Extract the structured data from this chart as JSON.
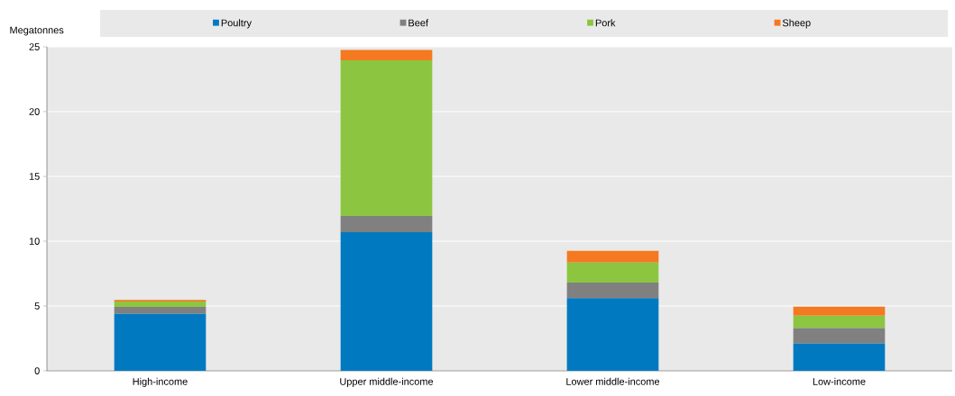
{
  "chart_data": {
    "type": "bar",
    "stacked": true,
    "ylabel": "Megatonnes",
    "categories": [
      "High-income",
      "Upper middle-income",
      "Lower middle-income",
      "Low-income"
    ],
    "series": [
      {
        "name": "Poultry",
        "color": "#0079c1",
        "values": [
          4.4,
          10.7,
          5.6,
          2.1
        ]
      },
      {
        "name": "Beef",
        "color": "#808080",
        "values": [
          0.53,
          1.25,
          1.2,
          1.2
        ]
      },
      {
        "name": "Pork",
        "color": "#8cc641",
        "values": [
          0.42,
          12.0,
          1.55,
          0.95
        ]
      },
      {
        "name": "Sheep",
        "color": "#f47920",
        "values": [
          0.12,
          0.8,
          0.9,
          0.7
        ]
      }
    ],
    "ylim": [
      0,
      25
    ],
    "yticks": [
      0,
      5,
      10,
      15,
      20,
      25
    ],
    "grid": "y",
    "legend": "top"
  }
}
